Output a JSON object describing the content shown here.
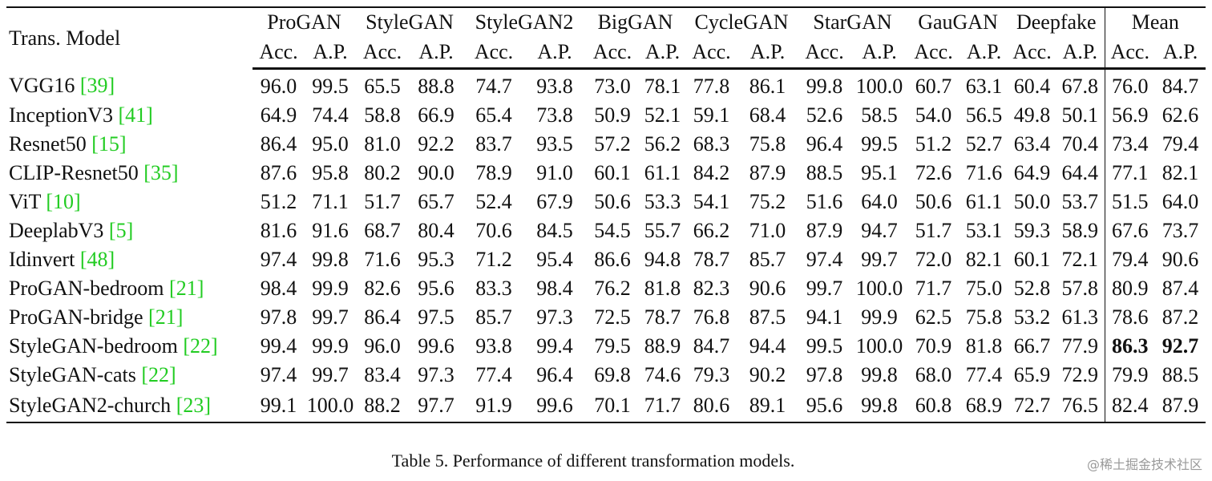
{
  "table": {
    "corner": "Trans. Model",
    "groups": [
      "ProGAN",
      "StyleGAN",
      "StyleGAN2",
      "BigGAN",
      "CycleGAN",
      "StarGAN",
      "GauGAN",
      "Deepfake",
      "Mean"
    ],
    "columns": [
      "Acc.",
      "A.P.",
      "Acc.",
      "A.P.",
      "Acc.",
      "A.P.",
      "Acc.",
      "A.P.",
      "Acc.",
      "A.P.",
      "Acc.",
      "A.P.",
      "Acc.",
      "A.P.",
      "Acc.",
      "A.P.",
      "Acc.",
      "A.P."
    ],
    "rows": [
      {
        "model": "VGG16",
        "ref": "[39]",
        "values": [
          "96.0",
          "99.5",
          "65.5",
          "88.8",
          "74.7",
          "93.8",
          "73.0",
          "78.1",
          "77.8",
          "86.1",
          "99.8",
          "100.0",
          "60.7",
          "63.1",
          "60.4",
          "67.8",
          "76.0",
          "84.7"
        ]
      },
      {
        "model": "InceptionV3",
        "ref": "[41]",
        "values": [
          "64.9",
          "74.4",
          "58.8",
          "66.9",
          "65.4",
          "73.8",
          "50.9",
          "52.1",
          "59.1",
          "68.4",
          "52.6",
          "58.5",
          "54.0",
          "56.5",
          "49.8",
          "50.1",
          "56.9",
          "62.6"
        ]
      },
      {
        "model": "Resnet50",
        "ref": "[15]",
        "values": [
          "86.4",
          "95.0",
          "81.0",
          "92.2",
          "83.7",
          "93.5",
          "57.2",
          "56.2",
          "68.3",
          "75.8",
          "96.4",
          "99.5",
          "51.2",
          "52.7",
          "63.4",
          "70.4",
          "73.4",
          "79.4"
        ]
      },
      {
        "model": "CLIP-Resnet50",
        "ref": "[35]",
        "values": [
          "87.6",
          "95.8",
          "80.2",
          "90.0",
          "78.9",
          "91.0",
          "60.1",
          "61.1",
          "84.2",
          "87.9",
          "88.5",
          "95.1",
          "72.6",
          "71.6",
          "64.9",
          "64.4",
          "77.1",
          "82.1"
        ]
      },
      {
        "model": "ViT",
        "ref": "[10]",
        "values": [
          "51.2",
          "71.1",
          "51.7",
          "65.7",
          "52.4",
          "67.9",
          "50.6",
          "53.3",
          "54.1",
          "75.2",
          "51.6",
          "64.0",
          "50.6",
          "61.1",
          "50.0",
          "53.7",
          "51.5",
          "64.0"
        ]
      },
      {
        "model": "DeeplabV3",
        "ref": "[5]",
        "values": [
          "81.6",
          "91.6",
          "68.7",
          "80.4",
          "70.6",
          "84.5",
          "54.5",
          "55.7",
          "66.2",
          "71.0",
          "87.9",
          "94.7",
          "51.7",
          "53.1",
          "59.3",
          "58.9",
          "67.6",
          "73.7"
        ]
      },
      {
        "model": "Idinvert",
        "ref": "[48]",
        "values": [
          "97.4",
          "99.8",
          "71.6",
          "95.3",
          "71.2",
          "95.4",
          "86.6",
          "94.8",
          "78.7",
          "85.7",
          "97.4",
          "99.7",
          "72.0",
          "82.1",
          "60.1",
          "72.1",
          "79.4",
          "90.6"
        ]
      },
      {
        "model": "ProGAN-bedroom",
        "ref": "[21]",
        "values": [
          "98.4",
          "99.9",
          "82.6",
          "95.6",
          "83.3",
          "98.4",
          "76.2",
          "81.8",
          "82.3",
          "90.6",
          "99.7",
          "100.0",
          "71.7",
          "75.0",
          "52.8",
          "57.8",
          "80.9",
          "87.4"
        ]
      },
      {
        "model": "ProGAN-bridge",
        "ref": "[21]",
        "values": [
          "97.8",
          "99.7",
          "86.4",
          "97.5",
          "85.7",
          "97.3",
          "72.5",
          "78.7",
          "76.8",
          "87.5",
          "94.1",
          "99.9",
          "62.5",
          "75.8",
          "53.2",
          "61.3",
          "78.6",
          "87.2"
        ]
      },
      {
        "model": "StyleGAN-bedroom",
        "ref": "[22]",
        "values": [
          "99.4",
          "99.9",
          "96.0",
          "99.6",
          "93.8",
          "99.4",
          "79.5",
          "88.9",
          "84.7",
          "94.4",
          "99.5",
          "100.0",
          "70.9",
          "81.8",
          "66.7",
          "77.9",
          "86.3",
          "92.7"
        ]
      },
      {
        "model": "StyleGAN-cats",
        "ref": "[22]",
        "values": [
          "97.4",
          "99.7",
          "83.4",
          "97.3",
          "77.4",
          "96.4",
          "69.8",
          "74.6",
          "79.3",
          "90.2",
          "97.8",
          "99.8",
          "68.0",
          "77.4",
          "65.9",
          "72.9",
          "79.9",
          "88.5"
        ]
      },
      {
        "model": "StyleGAN2-church",
        "ref": "[23]",
        "values": [
          "99.1",
          "100.0",
          "88.2",
          "97.7",
          "91.9",
          "99.6",
          "70.1",
          "71.7",
          "80.6",
          "89.1",
          "95.6",
          "99.8",
          "60.8",
          "68.9",
          "72.7",
          "76.5",
          "82.4",
          "87.9"
        ]
      }
    ],
    "caption": "Table 5. Performance of different transformation models."
  },
  "watermark": "@稀土掘金技术社区"
}
